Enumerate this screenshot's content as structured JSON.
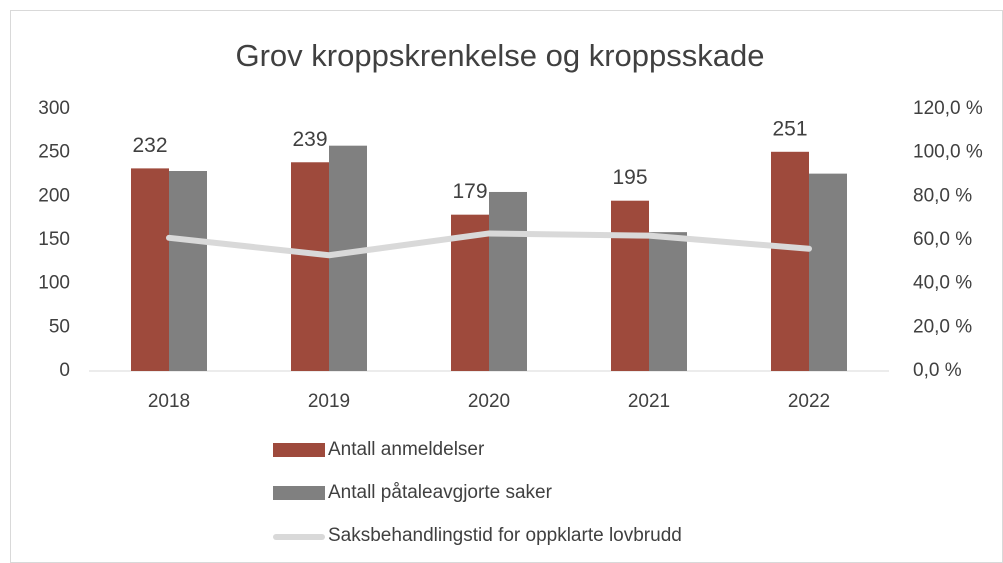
{
  "chart_data": {
    "type": "bar-line",
    "title": "Grov kroppskrenkelse og kroppsskade",
    "categories": [
      "2018",
      "2019",
      "2020",
      "2021",
      "2022"
    ],
    "series": [
      {
        "name": "Antall anmeldelser",
        "color": "#9e4a3c",
        "type": "bar",
        "values": [
          232,
          239,
          179,
          195,
          251
        ],
        "data_labels": true
      },
      {
        "name": "Antall påtaleavgjorte saker",
        "color": "#808080",
        "type": "bar",
        "values": [
          229,
          258,
          205,
          159,
          226
        ]
      },
      {
        "name": "Saksbehandlingstid for oppklarte lovbrudd",
        "color": "#d9d9d9",
        "type": "line",
        "axis": "y2",
        "values": [
          61,
          53,
          63,
          62,
          56
        ]
      }
    ],
    "ylim": [
      0,
      300
    ],
    "yticks": [
      0,
      50,
      100,
      150,
      200,
      250,
      300
    ],
    "y2lim": [
      0,
      120
    ],
    "y2ticks": [
      {
        "value": 0,
        "label": "0,0 %"
      },
      {
        "value": 20,
        "label": "20,0 %"
      },
      {
        "value": 40,
        "label": "40,0 %"
      },
      {
        "value": 60,
        "label": "60,0 %"
      },
      {
        "value": 80,
        "label": "80,0 %"
      },
      {
        "value": 100,
        "label": "100,0 %"
      },
      {
        "value": 120,
        "label": "120,0 %"
      }
    ],
    "grid": false,
    "legend": "bottom"
  }
}
